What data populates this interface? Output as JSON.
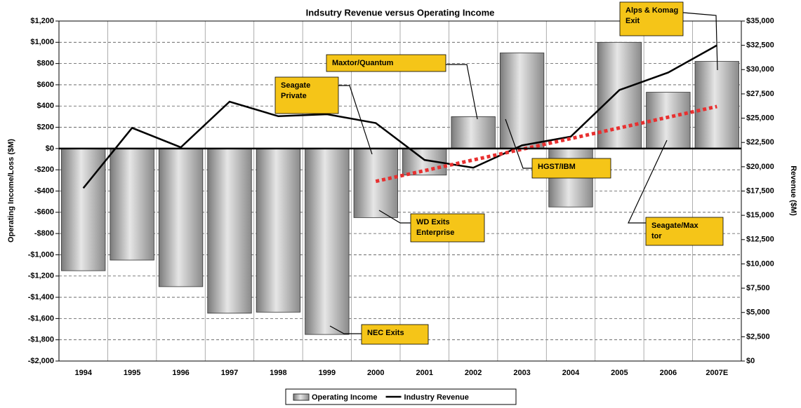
{
  "chart_data": {
    "type": "bar",
    "title": "Indsutry Revenue versus Operating Income",
    "y_label": "Operating Income/Loss ($M)",
    "y2_label": "Revenue ($M)",
    "categories": [
      "1994",
      "1995",
      "1996",
      "1997",
      "1998",
      "1999",
      "2000",
      "2001",
      "2002",
      "2003",
      "2004",
      "2005",
      "2006",
      "2007E"
    ],
    "series": [
      {
        "name": "Operating Income",
        "type": "bar",
        "color": "#a6a6a6",
        "values": [
          -1150,
          -1050,
          -1300,
          -1550,
          -1540,
          -1750,
          -650,
          -250,
          300,
          900,
          -550,
          1000,
          530,
          820
        ]
      },
      {
        "name": "Industry Revenue",
        "type": "line",
        "axis": "y2",
        "color": "#000000",
        "values": [
          17800,
          24000,
          22000,
          26700,
          25200,
          25400,
          24500,
          20700,
          19900,
          22200,
          23100,
          27900,
          29700,
          32500
        ]
      },
      {
        "type": "line",
        "axis": "y2",
        "color": "#e83030",
        "dashed": true,
        "values": [
          null,
          null,
          null,
          null,
          null,
          null,
          18500,
          null,
          null,
          null,
          null,
          null,
          null,
          26200
        ]
      }
    ],
    "ylim": [
      -2000,
      1200
    ],
    "yticks": [
      {
        "value": -2000,
        "label": "-$2,000"
      },
      {
        "value": -1800,
        "label": "-$1,800"
      },
      {
        "value": -1600,
        "label": "-$1,600"
      },
      {
        "value": -1400,
        "label": "-$1,400"
      },
      {
        "value": -1200,
        "label": "-$1,200"
      },
      {
        "value": -1000,
        "label": "-$1,000"
      },
      {
        "value": -800,
        "label": "-$800"
      },
      {
        "value": -600,
        "label": "-$600"
      },
      {
        "value": -400,
        "label": "-$400"
      },
      {
        "value": -200,
        "label": "-$200"
      },
      {
        "value": 0,
        "label": "$0"
      },
      {
        "value": 200,
        "label": "$200"
      },
      {
        "value": 400,
        "label": "$400"
      },
      {
        "value": 600,
        "label": "$600"
      },
      {
        "value": 800,
        "label": "$800"
      },
      {
        "value": 1000,
        "label": "$1,000"
      },
      {
        "value": 1200,
        "label": "$1,200"
      }
    ],
    "y2lim": [
      0,
      35000
    ],
    "y2ticks": [
      {
        "value": 0,
        "label": "$0"
      },
      {
        "value": 2500,
        "label": "$2,500"
      },
      {
        "value": 5000,
        "label": "$5,000"
      },
      {
        "value": 7500,
        "label": "$7,500"
      },
      {
        "value": 10000,
        "label": "$10,000"
      },
      {
        "value": 12500,
        "label": "$12,500"
      },
      {
        "value": 15000,
        "label": "$15,000"
      },
      {
        "value": 17500,
        "label": "$17,500"
      },
      {
        "value": 20000,
        "label": "$20,000"
      },
      {
        "value": 22500,
        "label": "$22,500"
      },
      {
        "value": 25000,
        "label": "$25,000"
      },
      {
        "value": 27500,
        "label": "$27,500"
      },
      {
        "value": 30000,
        "label": "$30,000"
      },
      {
        "value": 32500,
        "label": "$32,500"
      },
      {
        "value": 35000,
        "label": "$35,000"
      }
    ],
    "grid": true,
    "legend": "bottom",
    "annotations": [
      {
        "lines": [
          "Seagate",
          "Private"
        ]
      },
      {
        "lines": [
          "Maxtor/Quantum"
        ]
      },
      {
        "lines": [
          "HGST/IBM"
        ]
      },
      {
        "lines": [
          "WD Exits",
          "Enterprise"
        ]
      },
      {
        "lines": [
          "NEC Exits"
        ]
      },
      {
        "lines": [
          "Seagate/Max",
          "tor"
        ]
      },
      {
        "lines": [
          "Alps & Komag",
          "Exit"
        ]
      }
    ]
  }
}
